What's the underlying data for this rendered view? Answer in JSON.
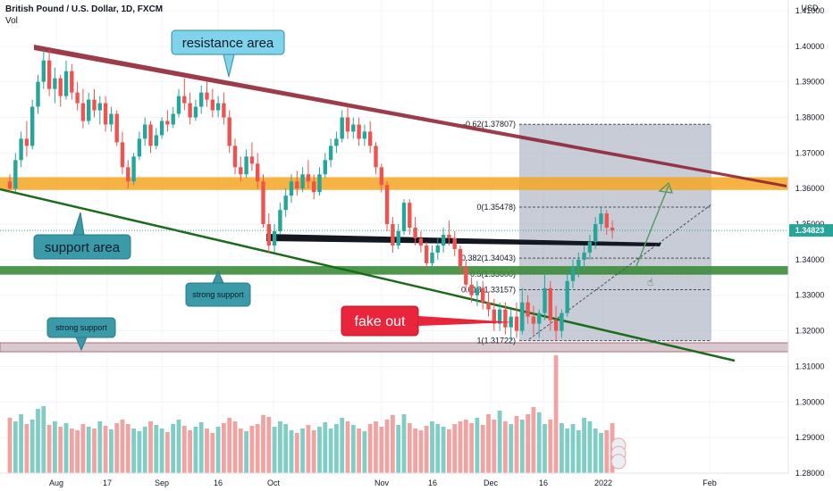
{
  "header": {
    "symbol": "British Pound / U.S. Dollar, 1D, FXCM",
    "volume_label": "Vol",
    "currency": "USD",
    "current_price": "1.34823"
  },
  "colors": {
    "up": "#26a69a",
    "down": "#ef5350",
    "vol_up": "#7fcdc4",
    "vol_down": "#f1a3a1",
    "resistance_band": "#8b1a2b",
    "support_line": "#1b6b1b",
    "orange_zone": "#f5a623",
    "green_zone": "#3c8c3c",
    "black_line": "#131722",
    "fib_fill": "#9aa3b5",
    "callout_blue": "#7fd3ea",
    "callout_teal": "#3a9aa8",
    "fakeout_red": "#e8253a",
    "arrow_green": "#5a9a6a",
    "price_tag": "#26a69a"
  },
  "chart_data": {
    "type": "candlestick",
    "instrument": "British Pound / U.S. Dollar",
    "timeframe": "1D",
    "y_axis": {
      "ticks": [
        "1.41000",
        "1.40000",
        "1.39000",
        "1.38000",
        "1.37000",
        "1.36000",
        "1.35000",
        "1.34000",
        "1.33000",
        "1.32000",
        "1.31000",
        "1.30000",
        "1.29000",
        "1.28000"
      ],
      "range": [
        1.281,
        1.412
      ]
    },
    "x_axis": {
      "ticks": [
        "Aug",
        "17",
        "Sep",
        "16",
        "Oct",
        "Nov",
        "16",
        "Dec",
        "16",
        "2022",
        "Feb"
      ]
    },
    "series": [
      {
        "values": [
          [
            1.362,
            1.364,
            1.359,
            1.36
          ],
          [
            1.36,
            1.37,
            1.359,
            1.368
          ],
          [
            1.368,
            1.376,
            1.366,
            1.374
          ],
          [
            1.374,
            1.379,
            1.369,
            1.372
          ],
          [
            1.372,
            1.385,
            1.371,
            1.383
          ],
          [
            1.383,
            1.392,
            1.381,
            1.39
          ],
          [
            1.39,
            1.399,
            1.388,
            1.396
          ],
          [
            1.396,
            1.399,
            1.386,
            1.388
          ],
          [
            1.388,
            1.394,
            1.384,
            1.391
          ],
          [
            1.391,
            1.392,
            1.383,
            1.386
          ],
          [
            1.386,
            1.396,
            1.385,
            1.393
          ],
          [
            1.393,
            1.395,
            1.385,
            1.387
          ],
          [
            1.387,
            1.39,
            1.382,
            1.384
          ],
          [
            1.384,
            1.388,
            1.377,
            1.379
          ],
          [
            1.379,
            1.387,
            1.378,
            1.385
          ],
          [
            1.385,
            1.388,
            1.38,
            1.382
          ],
          [
            1.382,
            1.386,
            1.378,
            1.384
          ],
          [
            1.384,
            1.386,
            1.376,
            1.378
          ],
          [
            1.378,
            1.383,
            1.376,
            1.381
          ],
          [
            1.381,
            1.382,
            1.372,
            1.373
          ],
          [
            1.373,
            1.376,
            1.364,
            1.366
          ],
          [
            1.366,
            1.368,
            1.36,
            1.362
          ],
          [
            1.362,
            1.37,
            1.361,
            1.369
          ],
          [
            1.369,
            1.376,
            1.368,
            1.374
          ],
          [
            1.374,
            1.38,
            1.372,
            1.378
          ],
          [
            1.378,
            1.379,
            1.37,
            1.372
          ],
          [
            1.372,
            1.377,
            1.371,
            1.375
          ],
          [
            1.375,
            1.38,
            1.374,
            1.379
          ],
          [
            1.379,
            1.382,
            1.376,
            1.378
          ],
          [
            1.378,
            1.383,
            1.377,
            1.381
          ],
          [
            1.381,
            1.388,
            1.38,
            1.386
          ],
          [
            1.386,
            1.391,
            1.382,
            1.384
          ],
          [
            1.384,
            1.387,
            1.378,
            1.38
          ],
          [
            1.38,
            1.385,
            1.379,
            1.383
          ],
          [
            1.383,
            1.389,
            1.381,
            1.387
          ],
          [
            1.387,
            1.39,
            1.383,
            1.385
          ],
          [
            1.385,
            1.388,
            1.38,
            1.382
          ],
          [
            1.382,
            1.386,
            1.38,
            1.384
          ],
          [
            1.384,
            1.387,
            1.378,
            1.38
          ],
          [
            1.38,
            1.382,
            1.37,
            1.372
          ],
          [
            1.372,
            1.374,
            1.364,
            1.366
          ],
          [
            1.366,
            1.369,
            1.362,
            1.364
          ],
          [
            1.364,
            1.371,
            1.363,
            1.369
          ],
          [
            1.369,
            1.373,
            1.365,
            1.367
          ],
          [
            1.367,
            1.37,
            1.36,
            1.362
          ],
          [
            1.362,
            1.364,
            1.349,
            1.35
          ],
          [
            1.35,
            1.353,
            1.342,
            1.344
          ],
          [
            1.344,
            1.35,
            1.342,
            1.348
          ],
          [
            1.348,
            1.356,
            1.347,
            1.354
          ],
          [
            1.354,
            1.36,
            1.352,
            1.358
          ],
          [
            1.358,
            1.364,
            1.356,
            1.362
          ],
          [
            1.362,
            1.365,
            1.358,
            1.36
          ],
          [
            1.36,
            1.366,
            1.359,
            1.364
          ],
          [
            1.364,
            1.368,
            1.36,
            1.362
          ],
          [
            1.362,
            1.364,
            1.357,
            1.359
          ],
          [
            1.359,
            1.366,
            1.358,
            1.364
          ],
          [
            1.364,
            1.37,
            1.363,
            1.368
          ],
          [
            1.368,
            1.374,
            1.366,
            1.372
          ],
          [
            1.372,
            1.376,
            1.37,
            1.374
          ],
          [
            1.374,
            1.382,
            1.373,
            1.38
          ],
          [
            1.38,
            1.383,
            1.374,
            1.376
          ],
          [
            1.376,
            1.38,
            1.374,
            1.378
          ],
          [
            1.378,
            1.38,
            1.372,
            1.374
          ],
          [
            1.374,
            1.378,
            1.372,
            1.376
          ],
          [
            1.376,
            1.379,
            1.37,
            1.372
          ],
          [
            1.372,
            1.373,
            1.364,
            1.366
          ],
          [
            1.366,
            1.367,
            1.359,
            1.361
          ],
          [
            1.361,
            1.362,
            1.348,
            1.35
          ],
          [
            1.35,
            1.352,
            1.342,
            1.344
          ],
          [
            1.344,
            1.35,
            1.343,
            1.348
          ],
          [
            1.348,
            1.357,
            1.347,
            1.356
          ],
          [
            1.356,
            1.357,
            1.347,
            1.349
          ],
          [
            1.349,
            1.352,
            1.344,
            1.346
          ],
          [
            1.346,
            1.348,
            1.342,
            1.344
          ],
          [
            1.344,
            1.345,
            1.337,
            1.339
          ],
          [
            1.339,
            1.344,
            1.337,
            1.342
          ],
          [
            1.342,
            1.346,
            1.34,
            1.344
          ],
          [
            1.344,
            1.349,
            1.342,
            1.347
          ],
          [
            1.347,
            1.351,
            1.344,
            1.346
          ],
          [
            1.346,
            1.348,
            1.341,
            1.343
          ],
          [
            1.343,
            1.344,
            1.336,
            1.338
          ],
          [
            1.338,
            1.34,
            1.331,
            1.333
          ],
          [
            1.333,
            1.335,
            1.328,
            1.33
          ],
          [
            1.33,
            1.334,
            1.327,
            1.332
          ],
          [
            1.332,
            1.334,
            1.326,
            1.328
          ],
          [
            1.328,
            1.331,
            1.324,
            1.326
          ],
          [
            1.326,
            1.329,
            1.32,
            1.322
          ],
          [
            1.322,
            1.328,
            1.32,
            1.326
          ],
          [
            1.326,
            1.328,
            1.319,
            1.321
          ],
          [
            1.321,
            1.326,
            1.317,
            1.324
          ],
          [
            1.324,
            1.328,
            1.318,
            1.32
          ],
          [
            1.32,
            1.332,
            1.319,
            1.328
          ],
          [
            1.328,
            1.33,
            1.322,
            1.324
          ],
          [
            1.324,
            1.327,
            1.319,
            1.322
          ],
          [
            1.322,
            1.326,
            1.318,
            1.325
          ],
          [
            1.325,
            1.336,
            1.323,
            1.332
          ],
          [
            1.332,
            1.334,
            1.32,
            1.323
          ],
          [
            1.323,
            1.327,
            1.3172,
            1.32
          ],
          [
            1.32,
            1.326,
            1.318,
            1.325
          ],
          [
            1.325,
            1.336,
            1.324,
            1.334
          ],
          [
            1.334,
            1.34,
            1.332,
            1.338
          ],
          [
            1.338,
            1.342,
            1.335,
            1.34
          ],
          [
            1.34,
            1.344,
            1.337,
            1.342
          ],
          [
            1.342,
            1.347,
            1.34,
            1.345
          ],
          [
            1.345,
            1.352,
            1.343,
            1.35
          ],
          [
            1.35,
            1.3548,
            1.348,
            1.353
          ],
          [
            1.353,
            1.354,
            1.347,
            1.349
          ],
          [
            1.349,
            1.351,
            1.346,
            1.3482
          ]
        ]
      }
    ],
    "volume": [
      62,
      58,
      66,
      55,
      60,
      72,
      75,
      54,
      58,
      52,
      56,
      50,
      48,
      55,
      52,
      50,
      58,
      53,
      49,
      56,
      60,
      55,
      50,
      47,
      52,
      58,
      54,
      50,
      46,
      55,
      60,
      53,
      48,
      52,
      57,
      50,
      45,
      52,
      56,
      62,
      58,
      50,
      47,
      53,
      55,
      65,
      63,
      52,
      58,
      55,
      48,
      45,
      50,
      54,
      48,
      52,
      57,
      50,
      55,
      62,
      58,
      54,
      50,
      47,
      55,
      58,
      52,
      60,
      65,
      54,
      66,
      56,
      50,
      48,
      53,
      58,
      55,
      52,
      49,
      55,
      58,
      60,
      56,
      62,
      54,
      66,
      60,
      70,
      58,
      55,
      64,
      60,
      66,
      74,
      68,
      55,
      60,
      52,
      56,
      50,
      55,
      48,
      62,
      58,
      50,
      45,
      48,
      56
    ],
    "annotations": {
      "resistance": "resistance area",
      "support": "support area",
      "strong_support_1": "strong support",
      "strong_support_2": "strong support",
      "fake_out": "fake out"
    },
    "fibonacci": [
      {
        "label": "-0.62(1.37807)",
        "price": 1.37807
      },
      {
        "label": "0(1.35478)",
        "price": 1.35478
      },
      {
        "label": "0.382(1.34043)",
        "price": 1.34043
      },
      {
        "label": "0.5(1.33600)",
        "price": 1.336
      },
      {
        "label": "0.618(1.33157)",
        "price": 1.33157
      },
      {
        "label": "1(1.31722)",
        "price": 1.31722
      }
    ]
  }
}
